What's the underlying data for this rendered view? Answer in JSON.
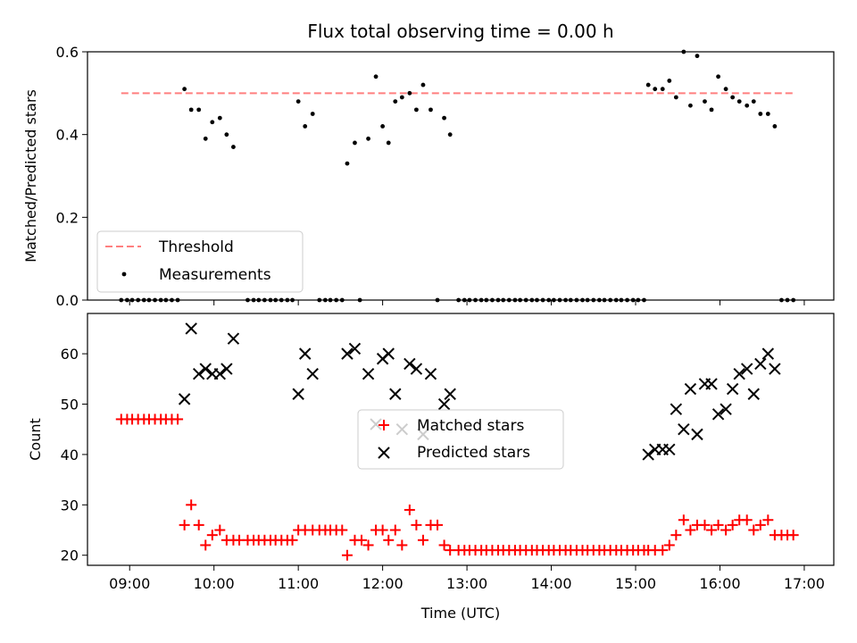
{
  "title": "Flux total observing time = 0.00 h",
  "chart_data": [
    {
      "type": "scatter",
      "ylabel": "Matched/Predicted stars",
      "xlabel": "",
      "xlim": [
        8.5,
        17.35
      ],
      "ylim": [
        0,
        0.6
      ],
      "yticks": [
        "0.0",
        "0.2",
        "0.4",
        "0.6"
      ],
      "grid": false,
      "legend_position": "lower-left",
      "legend": [
        "Threshold",
        "Measurements"
      ],
      "threshold": {
        "name": "Threshold",
        "value": 0.5,
        "color": "#ff7f7f"
      },
      "measurements": {
        "name": "Measurements",
        "color": "#000000",
        "points": [
          [
            8.9,
            0
          ],
          [
            8.97,
            0
          ],
          [
            9.03,
            0
          ],
          [
            9.1,
            0
          ],
          [
            9.17,
            0
          ],
          [
            9.23,
            0
          ],
          [
            9.3,
            0
          ],
          [
            9.37,
            0
          ],
          [
            9.43,
            0
          ],
          [
            9.5,
            0
          ],
          [
            9.57,
            0
          ],
          [
            9.65,
            0.51
          ],
          [
            9.73,
            0.46
          ],
          [
            9.82,
            0.46
          ],
          [
            9.9,
            0.39
          ],
          [
            9.98,
            0.43
          ],
          [
            10.07,
            0.44
          ],
          [
            10.15,
            0.4
          ],
          [
            10.23,
            0.37
          ],
          [
            10.4,
            0
          ],
          [
            10.47,
            0
          ],
          [
            10.53,
            0
          ],
          [
            10.6,
            0
          ],
          [
            10.67,
            0
          ],
          [
            10.73,
            0
          ],
          [
            10.8,
            0
          ],
          [
            10.87,
            0
          ],
          [
            10.93,
            0
          ],
          [
            11.0,
            0.48
          ],
          [
            11.08,
            0.42
          ],
          [
            11.17,
            0.45
          ],
          [
            11.25,
            0
          ],
          [
            11.32,
            0
          ],
          [
            11.38,
            0
          ],
          [
            11.45,
            0
          ],
          [
            11.52,
            0
          ],
          [
            11.58,
            0.33
          ],
          [
            11.67,
            0.38
          ],
          [
            11.73,
            0
          ],
          [
            11.83,
            0.39
          ],
          [
            11.92,
            0.54
          ],
          [
            12.0,
            0.42
          ],
          [
            12.07,
            0.38
          ],
          [
            12.15,
            0.48
          ],
          [
            12.23,
            0.49
          ],
          [
            12.32,
            0.5
          ],
          [
            12.4,
            0.46
          ],
          [
            12.48,
            0.52
          ],
          [
            12.57,
            0.46
          ],
          [
            12.65,
            0
          ],
          [
            12.73,
            0.44
          ],
          [
            12.8,
            0.4
          ],
          [
            12.9,
            0
          ],
          [
            12.97,
            0
          ],
          [
            13.03,
            0
          ],
          [
            13.1,
            0
          ],
          [
            13.17,
            0
          ],
          [
            13.23,
            0
          ],
          [
            13.3,
            0
          ],
          [
            13.37,
            0
          ],
          [
            13.43,
            0
          ],
          [
            13.5,
            0
          ],
          [
            13.57,
            0
          ],
          [
            13.63,
            0
          ],
          [
            13.7,
            0
          ],
          [
            13.77,
            0
          ],
          [
            13.83,
            0
          ],
          [
            13.9,
            0
          ],
          [
            13.97,
            0
          ],
          [
            14.03,
            0
          ],
          [
            14.1,
            0
          ],
          [
            14.17,
            0
          ],
          [
            14.23,
            0
          ],
          [
            14.3,
            0
          ],
          [
            14.37,
            0
          ],
          [
            14.43,
            0
          ],
          [
            14.5,
            0
          ],
          [
            14.57,
            0
          ],
          [
            14.63,
            0
          ],
          [
            14.7,
            0
          ],
          [
            14.77,
            0
          ],
          [
            14.83,
            0
          ],
          [
            14.9,
            0
          ],
          [
            14.97,
            0
          ],
          [
            15.03,
            0
          ],
          [
            15.1,
            0
          ],
          [
            15.15,
            0.52
          ],
          [
            15.23,
            0.51
          ],
          [
            15.32,
            0.51
          ],
          [
            15.4,
            0.53
          ],
          [
            15.48,
            0.49
          ],
          [
            15.57,
            0.6
          ],
          [
            15.65,
            0.47
          ],
          [
            15.73,
            0.59
          ],
          [
            15.82,
            0.48
          ],
          [
            15.9,
            0.46
          ],
          [
            15.98,
            0.54
          ],
          [
            16.07,
            0.51
          ],
          [
            16.15,
            0.49
          ],
          [
            16.23,
            0.48
          ],
          [
            16.32,
            0.47
          ],
          [
            16.4,
            0.48
          ],
          [
            16.48,
            0.45
          ],
          [
            16.57,
            0.45
          ],
          [
            16.65,
            0.42
          ],
          [
            16.73,
            0
          ],
          [
            16.8,
            0
          ],
          [
            16.87,
            0
          ]
        ]
      }
    },
    {
      "type": "scatter",
      "ylabel": "Count",
      "xlabel": "Time (UTC)",
      "xlim": [
        8.5,
        17.35
      ],
      "ylim": [
        18,
        68
      ],
      "yticks": [
        "20",
        "30",
        "40",
        "50",
        "60"
      ],
      "xticks": [
        "09:00",
        "10:00",
        "11:00",
        "12:00",
        "13:00",
        "14:00",
        "15:00",
        "16:00",
        "17:00"
      ],
      "grid": false,
      "legend_position": "center",
      "legend": [
        "Matched stars",
        "Predicted stars"
      ],
      "series": [
        {
          "name": "Matched stars",
          "marker": "plus",
          "color": "#ff0000",
          "points": [
            [
              8.9,
              47
            ],
            [
              8.97,
              47
            ],
            [
              9.03,
              47
            ],
            [
              9.1,
              47
            ],
            [
              9.17,
              47
            ],
            [
              9.23,
              47
            ],
            [
              9.3,
              47
            ],
            [
              9.37,
              47
            ],
            [
              9.43,
              47
            ],
            [
              9.5,
              47
            ],
            [
              9.57,
              47
            ],
            [
              9.65,
              26
            ],
            [
              9.73,
              30
            ],
            [
              9.82,
              26
            ],
            [
              9.9,
              22
            ],
            [
              9.98,
              24
            ],
            [
              10.07,
              25
            ],
            [
              10.15,
              23
            ],
            [
              10.23,
              23
            ],
            [
              10.3,
              23
            ],
            [
              10.4,
              23
            ],
            [
              10.47,
              23
            ],
            [
              10.53,
              23
            ],
            [
              10.6,
              23
            ],
            [
              10.67,
              23
            ],
            [
              10.73,
              23
            ],
            [
              10.8,
              23
            ],
            [
              10.87,
              23
            ],
            [
              10.93,
              23
            ],
            [
              11.0,
              25
            ],
            [
              11.08,
              25
            ],
            [
              11.17,
              25
            ],
            [
              11.25,
              25
            ],
            [
              11.32,
              25
            ],
            [
              11.38,
              25
            ],
            [
              11.45,
              25
            ],
            [
              11.52,
              25
            ],
            [
              11.58,
              20
            ],
            [
              11.67,
              23
            ],
            [
              11.75,
              23
            ],
            [
              11.83,
              22
            ],
            [
              11.92,
              25
            ],
            [
              12.0,
              25
            ],
            [
              12.07,
              23
            ],
            [
              12.15,
              25
            ],
            [
              12.23,
              22
            ],
            [
              12.32,
              29
            ],
            [
              12.4,
              26
            ],
            [
              12.48,
              23
            ],
            [
              12.57,
              26
            ],
            [
              12.65,
              26
            ],
            [
              12.73,
              22
            ],
            [
              12.8,
              21
            ],
            [
              12.9,
              21
            ],
            [
              12.97,
              21
            ],
            [
              13.03,
              21
            ],
            [
              13.1,
              21
            ],
            [
              13.17,
              21
            ],
            [
              13.23,
              21
            ],
            [
              13.3,
              21
            ],
            [
              13.37,
              21
            ],
            [
              13.43,
              21
            ],
            [
              13.5,
              21
            ],
            [
              13.57,
              21
            ],
            [
              13.63,
              21
            ],
            [
              13.7,
              21
            ],
            [
              13.77,
              21
            ],
            [
              13.83,
              21
            ],
            [
              13.9,
              21
            ],
            [
              13.97,
              21
            ],
            [
              14.03,
              21
            ],
            [
              14.1,
              21
            ],
            [
              14.17,
              21
            ],
            [
              14.23,
              21
            ],
            [
              14.3,
              21
            ],
            [
              14.37,
              21
            ],
            [
              14.43,
              21
            ],
            [
              14.5,
              21
            ],
            [
              14.57,
              21
            ],
            [
              14.63,
              21
            ],
            [
              14.7,
              21
            ],
            [
              14.77,
              21
            ],
            [
              14.83,
              21
            ],
            [
              14.9,
              21
            ],
            [
              14.97,
              21
            ],
            [
              15.03,
              21
            ],
            [
              15.1,
              21
            ],
            [
              15.15,
              21
            ],
            [
              15.23,
              21
            ],
            [
              15.32,
              21
            ],
            [
              15.4,
              22
            ],
            [
              15.48,
              24
            ],
            [
              15.57,
              27
            ],
            [
              15.65,
              25
            ],
            [
              15.73,
              26
            ],
            [
              15.82,
              26
            ],
            [
              15.9,
              25
            ],
            [
              15.98,
              26
            ],
            [
              16.07,
              25
            ],
            [
              16.15,
              26
            ],
            [
              16.23,
              27
            ],
            [
              16.32,
              27
            ],
            [
              16.4,
              25
            ],
            [
              16.48,
              26
            ],
            [
              16.57,
              27
            ],
            [
              16.65,
              24
            ],
            [
              16.73,
              24
            ],
            [
              16.8,
              24
            ],
            [
              16.87,
              24
            ]
          ]
        },
        {
          "name": "Predicted stars",
          "marker": "x",
          "color": "#000000",
          "points": [
            [
              9.65,
              51
            ],
            [
              9.73,
              65
            ],
            [
              9.82,
              56
            ],
            [
              9.9,
              57
            ],
            [
              9.98,
              56
            ],
            [
              10.07,
              56
            ],
            [
              10.15,
              57
            ],
            [
              10.23,
              63
            ],
            [
              11.0,
              52
            ],
            [
              11.08,
              60
            ],
            [
              11.17,
              56
            ],
            [
              11.58,
              60
            ],
            [
              11.67,
              61
            ],
            [
              11.83,
              56
            ],
            [
              11.92,
              46
            ],
            [
              12.0,
              59
            ],
            [
              12.07,
              60
            ],
            [
              12.15,
              52
            ],
            [
              12.23,
              45
            ],
            [
              12.32,
              58
            ],
            [
              12.4,
              57
            ],
            [
              12.48,
              44
            ],
            [
              12.57,
              56
            ],
            [
              12.73,
              50
            ],
            [
              12.8,
              52
            ],
            [
              15.15,
              40
            ],
            [
              15.23,
              41
            ],
            [
              15.32,
              41
            ],
            [
              15.4,
              41
            ],
            [
              15.48,
              49
            ],
            [
              15.57,
              45
            ],
            [
              15.65,
              53
            ],
            [
              15.73,
              44
            ],
            [
              15.82,
              54
            ],
            [
              15.9,
              54
            ],
            [
              15.98,
              48
            ],
            [
              16.07,
              49
            ],
            [
              16.15,
              53
            ],
            [
              16.23,
              56
            ],
            [
              16.32,
              57
            ],
            [
              16.4,
              52
            ],
            [
              16.48,
              58
            ],
            [
              16.57,
              60
            ],
            [
              16.65,
              57
            ]
          ]
        }
      ]
    }
  ]
}
